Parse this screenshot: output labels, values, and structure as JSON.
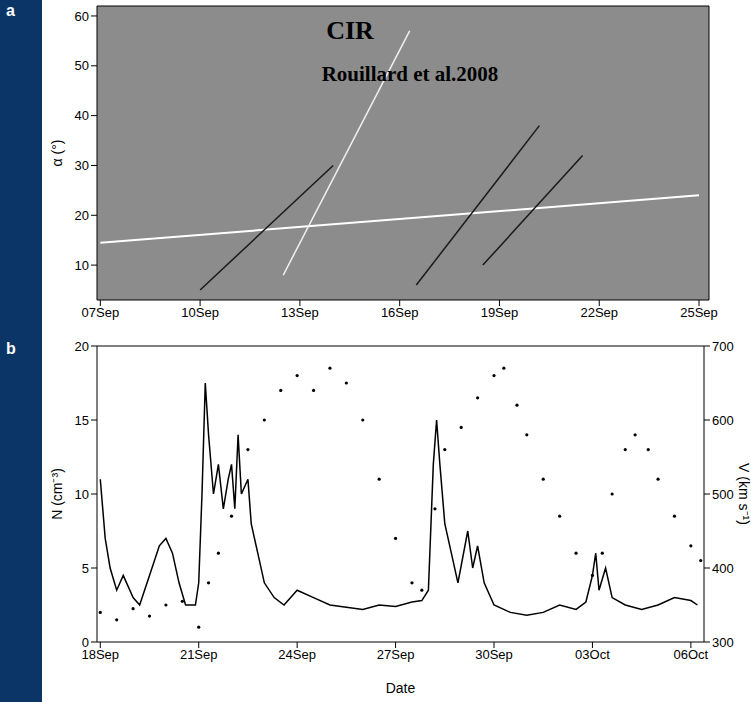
{
  "chart_data": [
    {
      "type": "line",
      "panel": "a",
      "title": "CIR",
      "subtitle": "Rouillard et al.2008",
      "y_label": "α (°)",
      "color": "#8c8c8c",
      "grid": false,
      "xlim": [
        6.9,
        25.3
      ],
      "xticks": [
        {
          "value": 7,
          "label": "07Sep"
        },
        {
          "value": 10,
          "label": "10Sep"
        },
        {
          "value": 13,
          "label": "13Sep"
        },
        {
          "value": 16,
          "label": "16Sep"
        },
        {
          "value": 19,
          "label": "19Sep"
        },
        {
          "value": 22,
          "label": "22Sep"
        },
        {
          "value": 25,
          "label": "25Sep"
        }
      ],
      "ylim": [
        3,
        62
      ],
      "yticks": [
        10,
        20,
        30,
        40,
        50,
        60
      ],
      "series": [
        {
          "color": "#ffffff",
          "line_style": "solid",
          "marker": "none",
          "x": [
            7,
            25
          ],
          "values": [
            14.5,
            24
          ]
        },
        {
          "color": "#f0f0f0",
          "line_style": "solid",
          "marker": "none",
          "x": [
            12.5,
            16.3
          ],
          "values": [
            8,
            57
          ]
        },
        {
          "color": "#1a1a1a",
          "line_style": "solid",
          "marker": "none",
          "x": [
            16.5,
            20.2
          ],
          "values": [
            6,
            38
          ]
        },
        {
          "color": "#1a1a1a",
          "line_style": "solid",
          "marker": "none",
          "x": [
            18.5,
            21.5
          ],
          "values": [
            10,
            32
          ]
        },
        {
          "color": "#1a1a1a",
          "line_style": "solid",
          "marker": "none",
          "x": [
            10,
            14
          ],
          "values": [
            5,
            30
          ]
        }
      ]
    },
    {
      "type": "line",
      "panel": "b",
      "x_label": "Date",
      "y_label": "N (cm⁻³)",
      "y2_label": "V (km s⁻¹)",
      "grid": false,
      "xlim": [
        17.9,
        36.4
      ],
      "xticks": [
        {
          "value": 18,
          "label": "18Sep"
        },
        {
          "value": 21,
          "label": "21Sep"
        },
        {
          "value": 24,
          "label": "24Sep"
        },
        {
          "value": 27,
          "label": "27Sep"
        },
        {
          "value": 30,
          "label": "30Sep"
        },
        {
          "value": 33,
          "label": "03Oct"
        },
        {
          "value": 36,
          "label": "06Oct"
        }
      ],
      "ylim": [
        0,
        20
      ],
      "yticks": [
        0,
        5,
        10,
        15,
        20
      ],
      "y2lim": [
        300,
        700
      ],
      "y2ticks": [
        300,
        400,
        500,
        600,
        700
      ],
      "series": [
        {
          "color": "#000000",
          "line_style": "solid",
          "marker": "none",
          "x": [
            18.0,
            18.15,
            18.3,
            18.5,
            18.7,
            19.0,
            19.2,
            19.5,
            19.8,
            20.0,
            20.2,
            20.4,
            20.6,
            20.9,
            21.0,
            21.1,
            21.2,
            21.3,
            21.45,
            21.6,
            21.75,
            21.9,
            22.0,
            22.1,
            22.2,
            22.3,
            22.5,
            22.6,
            22.8,
            23.0,
            23.3,
            23.6,
            24.0,
            24.5,
            25.0,
            26.0,
            26.5,
            27.0,
            27.5,
            27.8,
            28.0,
            28.15,
            28.25,
            28.35,
            28.5,
            28.7,
            28.9,
            29.2,
            29.35,
            29.5,
            29.7,
            30.0,
            30.5,
            31.0,
            31.5,
            32.0,
            32.5,
            32.8,
            33.0,
            33.1,
            33.2,
            33.4,
            33.6,
            34.0,
            34.5,
            35.0,
            35.5,
            36.0,
            36.2
          ],
          "values": [
            11,
            7,
            5,
            3.5,
            4.5,
            3,
            2.5,
            4.5,
            6.5,
            7,
            6,
            4,
            2.5,
            2.5,
            4,
            10,
            17.5,
            14,
            10,
            12,
            9,
            11,
            12,
            9,
            14,
            10,
            11,
            8,
            6,
            4,
            3,
            2.5,
            3.5,
            3,
            2.5,
            2.2,
            2.5,
            2.4,
            2.7,
            2.8,
            3.5,
            12,
            15,
            12,
            8,
            6,
            4,
            7.5,
            5,
            6.5,
            4,
            2.5,
            2,
            1.8,
            2,
            2.5,
            2.2,
            2.7,
            4.5,
            6,
            3.5,
            5,
            3,
            2.5,
            2.2,
            2.5,
            3,
            2.8,
            2.5
          ]
        },
        {
          "axis": "y2",
          "color": "#000000",
          "line_style": "none",
          "marker": "dot",
          "x": [
            18.0,
            18.5,
            19.0,
            19.5,
            20.0,
            20.5,
            21.0,
            21.3,
            21.6,
            22.0,
            22.5,
            23.0,
            23.5,
            24.0,
            24.5,
            25.0,
            25.5,
            26.0,
            26.5,
            27.0,
            27.5,
            27.8,
            28.2,
            28.5,
            29.0,
            29.5,
            30.0,
            30.3,
            30.7,
            31.0,
            31.5,
            32.0,
            32.5,
            33.0,
            33.3,
            33.6,
            34.0,
            34.3,
            34.7,
            35.0,
            35.5,
            36.0,
            36.3
          ],
          "values": [
            340,
            330,
            345,
            335,
            350,
            355,
            320,
            380,
            420,
            470,
            560,
            600,
            640,
            660,
            640,
            670,
            650,
            600,
            520,
            440,
            380,
            370,
            480,
            560,
            590,
            630,
            660,
            670,
            620,
            580,
            520,
            470,
            420,
            390,
            420,
            500,
            560,
            580,
            560,
            520,
            470,
            430,
            410
          ]
        }
      ]
    }
  ]
}
